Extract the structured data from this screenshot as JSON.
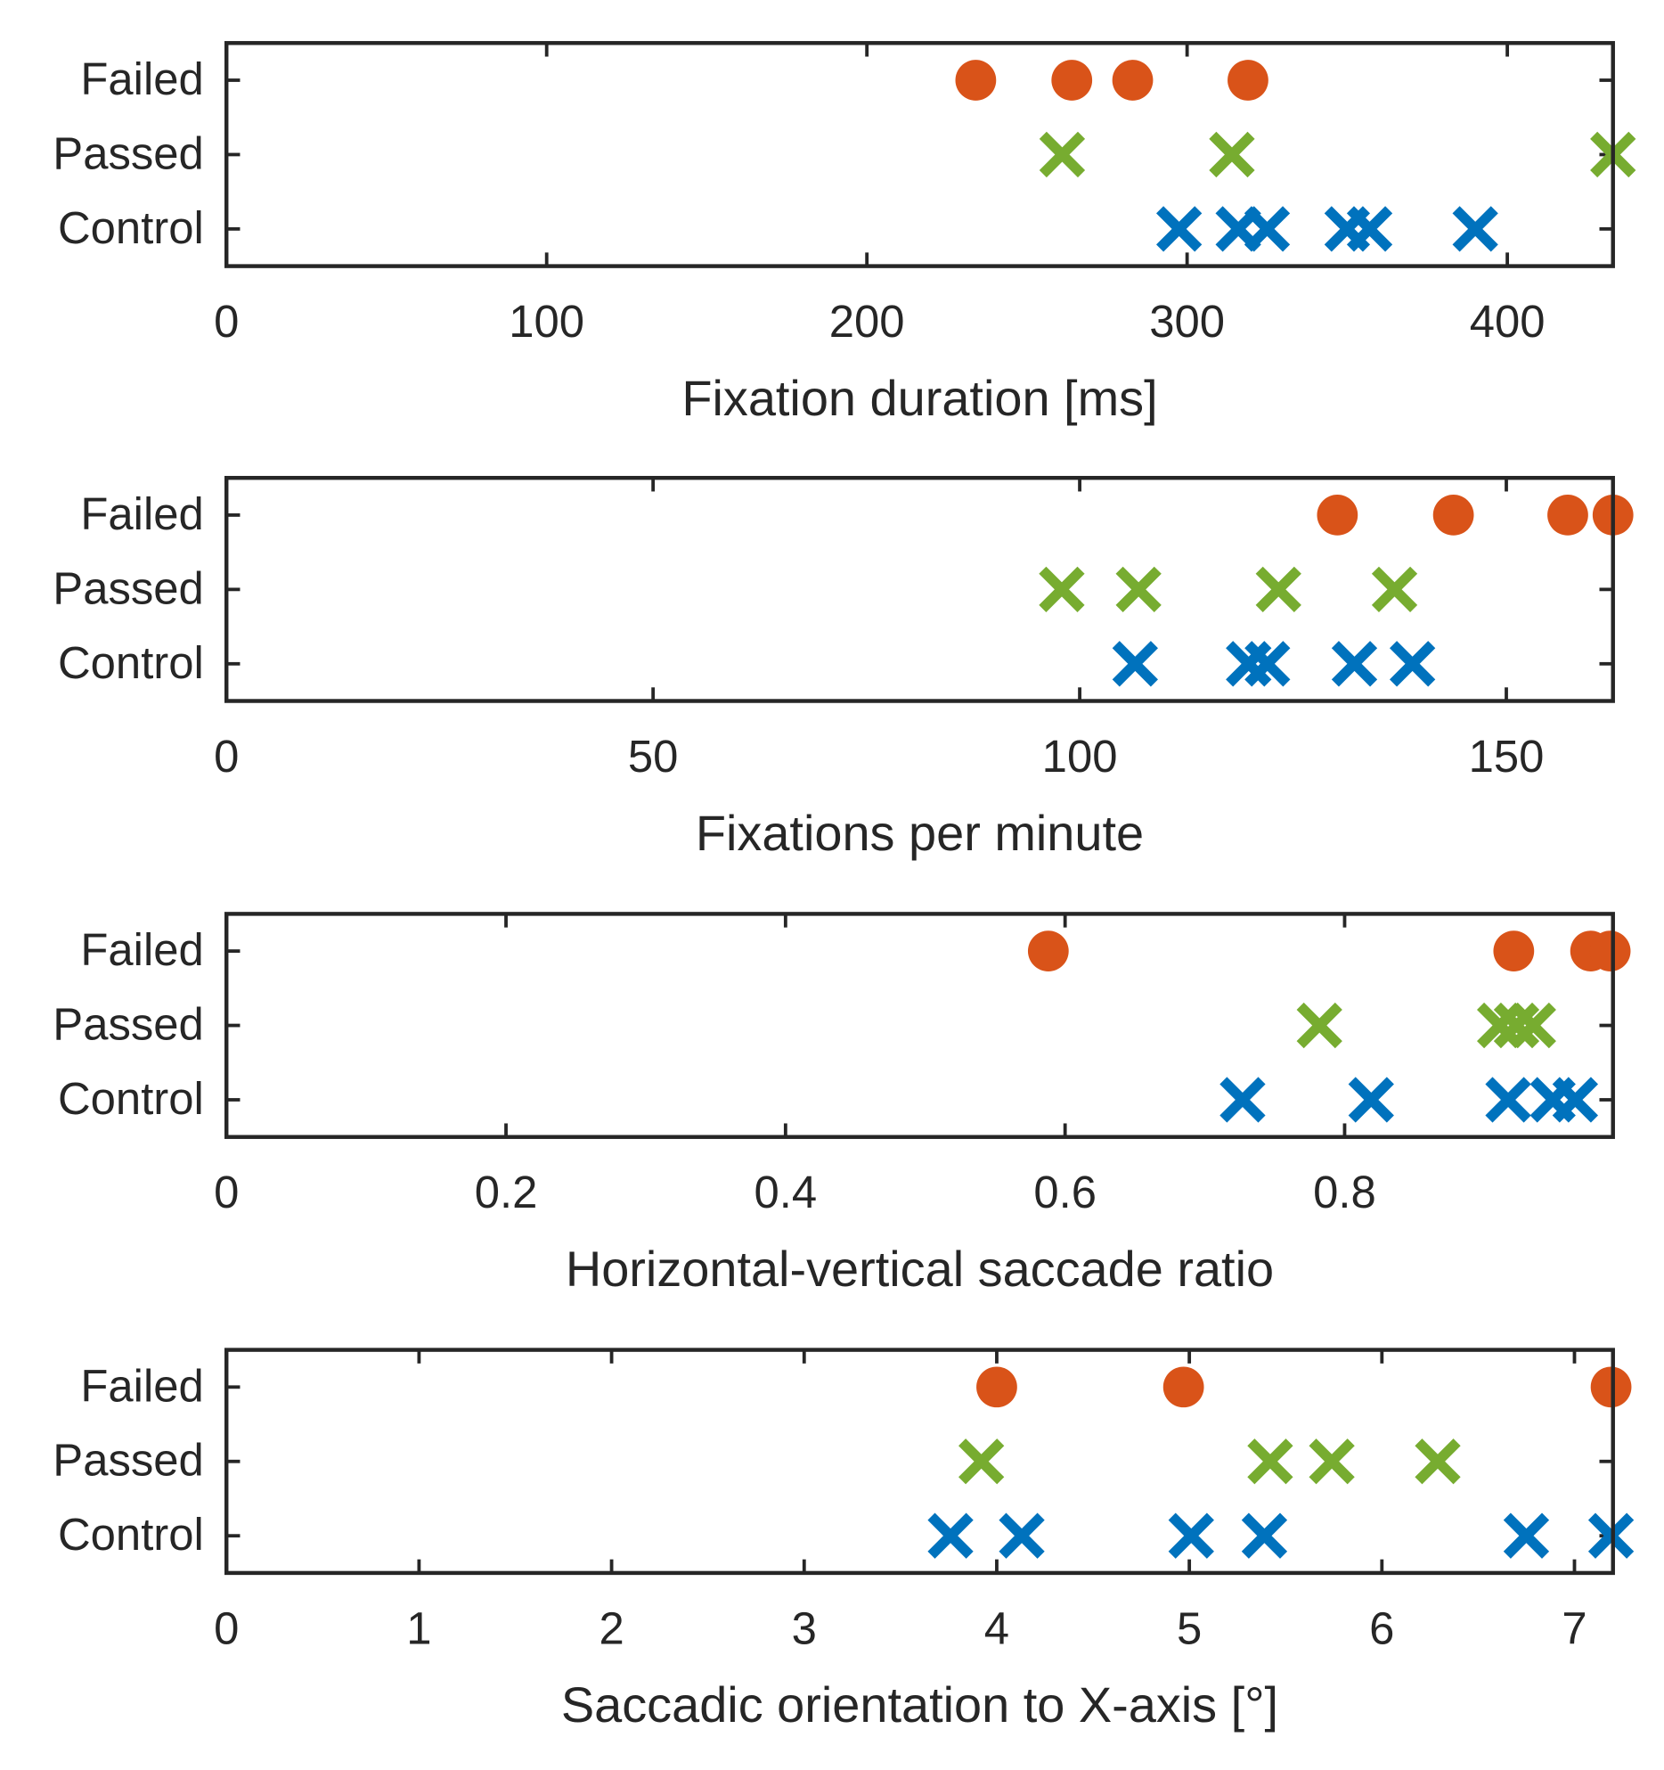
{
  "chart_data": [
    {
      "type": "scatter",
      "xlabel": "Fixation duration [ms]",
      "xlim": [
        0,
        433
      ],
      "xticks": [
        0,
        100,
        200,
        300,
        400
      ],
      "ylim": [
        0.5,
        3.5
      ],
      "yticks": [
        {
          "value": 1,
          "label": "Control"
        },
        {
          "value": 2,
          "label": "Passed"
        },
        {
          "value": 3,
          "label": "Failed"
        }
      ],
      "series": [
        {
          "y": 3,
          "marker": "o",
          "color": "#D95319",
          "x": [
            234,
            264,
            283,
            319
          ]
        },
        {
          "y": 2,
          "marker": "x",
          "color": "#77AC30",
          "x": [
            261,
            314,
            433
          ]
        },
        {
          "y": 1,
          "marker": "x",
          "color": "#0072BD",
          "x": [
            297.5,
            316,
            325,
            350,
            357,
            390
          ]
        }
      ]
    },
    {
      "type": "scatter",
      "xlabel": "Fixations per minute",
      "xlim": [
        0,
        162.5
      ],
      "xticks": [
        0,
        50,
        100,
        150
      ],
      "ylim": [
        0.5,
        3.5
      ],
      "yticks": [
        {
          "value": 1,
          "label": "Control"
        },
        {
          "value": 2,
          "label": "Passed"
        },
        {
          "value": 3,
          "label": "Failed"
        }
      ],
      "series": [
        {
          "y": 3,
          "marker": "o",
          "color": "#D95319",
          "x": [
            130.2,
            143.8,
            157.2,
            162.5
          ]
        },
        {
          "y": 2,
          "marker": "x",
          "color": "#77AC30",
          "x": [
            97.9,
            106.9,
            123.3,
            136.9
          ]
        },
        {
          "y": 1,
          "marker": "x",
          "color": "#0072BD",
          "x": [
            106.5,
            119.8,
            122,
            132.2,
            139
          ]
        }
      ]
    },
    {
      "type": "scatter",
      "xlabel": "Horizontal-vertical saccade ratio",
      "xlim": [
        0,
        0.992
      ],
      "xticks": [
        0,
        0.2,
        0.4,
        0.6,
        0.8
      ],
      "ylim": [
        0.5,
        3.5
      ],
      "yticks": [
        {
          "value": 1,
          "label": "Control"
        },
        {
          "value": 2,
          "label": "Passed"
        },
        {
          "value": 3,
          "label": "Failed"
        }
      ],
      "series": [
        {
          "y": 3,
          "marker": "o",
          "color": "#D95319",
          "x": [
            0.588,
            0.921,
            0.976,
            0.99
          ]
        },
        {
          "y": 2,
          "marker": "x",
          "color": "#77AC30",
          "x": [
            0.782,
            0.911,
            0.923,
            0.935
          ]
        },
        {
          "y": 1,
          "marker": "x",
          "color": "#0072BD",
          "x": [
            0.727,
            0.819,
            0.917,
            0.949,
            0.965
          ]
        }
      ]
    },
    {
      "type": "scatter",
      "xlabel": "Saccadic orientation to X-axis [°]",
      "xlim": [
        0,
        7.2
      ],
      "xticks": [
        0,
        1,
        2,
        3,
        4,
        5,
        6,
        7
      ],
      "ylim": [
        0.5,
        3.5
      ],
      "yticks": [
        {
          "value": 1,
          "label": "Control"
        },
        {
          "value": 2,
          "label": "Passed"
        },
        {
          "value": 3,
          "label": "Failed"
        }
      ],
      "series": [
        {
          "y": 3,
          "marker": "o",
          "color": "#D95319",
          "x": [
            4.0,
            4.97,
            7.19
          ]
        },
        {
          "y": 2,
          "marker": "x",
          "color": "#77AC30",
          "x": [
            3.92,
            5.42,
            5.74,
            6.29
          ]
        },
        {
          "y": 1,
          "marker": "x",
          "color": "#0072BD",
          "x": [
            3.76,
            4.13,
            5.01,
            5.39,
            6.75,
            7.19
          ]
        }
      ]
    }
  ]
}
